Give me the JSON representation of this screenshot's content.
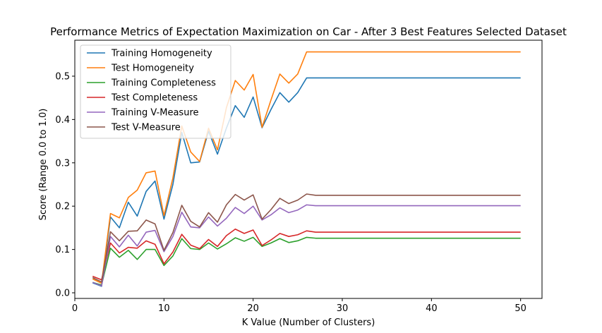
{
  "chart_data": {
    "type": "line",
    "title": "Performance Metrics of Expectation Maximization on Car - After 3 Best Features Selected Dataset",
    "xlabel": "K Value (Number of Clusters)",
    "ylabel": "Score (Range 0.0 to 1.0)",
    "xlim": [
      0,
      52.4
    ],
    "ylim": [
      -0.013,
      0.583
    ],
    "xticks": [
      0,
      10,
      20,
      30,
      40,
      50
    ],
    "yticks": [
      0.0,
      0.1,
      0.2,
      0.3,
      0.4,
      0.5
    ],
    "xtick_labels": [
      "0",
      "10",
      "20",
      "30",
      "40",
      "50"
    ],
    "ytick_labels": [
      "0.0",
      "0.1",
      "0.2",
      "0.3",
      "0.4",
      "0.5"
    ],
    "grid": false,
    "legend_position": "upper-left",
    "x": [
      2,
      3,
      4,
      5,
      6,
      7,
      8,
      9,
      10,
      11,
      12,
      13,
      14,
      15,
      16,
      17,
      18,
      19,
      20,
      21,
      22,
      23,
      24,
      25,
      26,
      27,
      28,
      29,
      30,
      31,
      32,
      33,
      34,
      35,
      36,
      37,
      38,
      39,
      40,
      41,
      42,
      43,
      44,
      45,
      46,
      47,
      48,
      49,
      50
    ],
    "series": [
      {
        "name": "Training Homogeneity",
        "color": "#1f77b4",
        "values": [
          0.023,
          0.015,
          0.175,
          0.15,
          0.209,
          0.177,
          0.234,
          0.258,
          0.17,
          0.25,
          0.37,
          0.3,
          0.302,
          0.373,
          0.32,
          0.38,
          0.432,
          0.405,
          0.452,
          0.381,
          0.423,
          0.462,
          0.44,
          0.462,
          0.496,
          0.496,
          0.496,
          0.496,
          0.496,
          0.496,
          0.496,
          0.496,
          0.496,
          0.496,
          0.496,
          0.496,
          0.496,
          0.496,
          0.496,
          0.496,
          0.496,
          0.496,
          0.496,
          0.496,
          0.496,
          0.496,
          0.496,
          0.496,
          0.496
        ]
      },
      {
        "name": "Test Homogeneity",
        "color": "#ff7f0e",
        "values": [
          0.032,
          0.022,
          0.183,
          0.173,
          0.22,
          0.237,
          0.277,
          0.281,
          0.178,
          0.265,
          0.385,
          0.325,
          0.303,
          0.38,
          0.33,
          0.427,
          0.49,
          0.468,
          0.504,
          0.382,
          0.445,
          0.505,
          0.484,
          0.505,
          0.556,
          0.556,
          0.556,
          0.556,
          0.556,
          0.556,
          0.556,
          0.556,
          0.556,
          0.556,
          0.556,
          0.556,
          0.556,
          0.556,
          0.556,
          0.556,
          0.556,
          0.556,
          0.556,
          0.556,
          0.556,
          0.556,
          0.556,
          0.556,
          0.556
        ]
      },
      {
        "name": "Training Completeness",
        "color": "#2ca02c",
        "values": [
          0.024,
          0.018,
          0.103,
          0.082,
          0.098,
          0.077,
          0.1,
          0.1,
          0.063,
          0.085,
          0.125,
          0.102,
          0.1,
          0.115,
          0.101,
          0.113,
          0.127,
          0.119,
          0.128,
          0.107,
          0.115,
          0.125,
          0.116,
          0.12,
          0.128,
          0.126,
          0.126,
          0.126,
          0.126,
          0.126,
          0.126,
          0.126,
          0.126,
          0.126,
          0.126,
          0.126,
          0.126,
          0.126,
          0.126,
          0.126,
          0.126,
          0.126,
          0.126,
          0.126,
          0.126,
          0.126,
          0.126,
          0.126,
          0.126
        ]
      },
      {
        "name": "Test Completeness",
        "color": "#d62728",
        "values": [
          0.038,
          0.03,
          0.115,
          0.092,
          0.105,
          0.103,
          0.12,
          0.112,
          0.067,
          0.094,
          0.135,
          0.11,
          0.102,
          0.123,
          0.107,
          0.132,
          0.147,
          0.137,
          0.145,
          0.109,
          0.122,
          0.137,
          0.13,
          0.134,
          0.143,
          0.14,
          0.14,
          0.14,
          0.14,
          0.14,
          0.14,
          0.14,
          0.14,
          0.14,
          0.14,
          0.14,
          0.14,
          0.14,
          0.14,
          0.14,
          0.14,
          0.14,
          0.14,
          0.14,
          0.14,
          0.14,
          0.14,
          0.14,
          0.14
        ]
      },
      {
        "name": "Training V-Measure",
        "color": "#9467bd",
        "values": [
          0.024,
          0.016,
          0.13,
          0.106,
          0.133,
          0.108,
          0.14,
          0.144,
          0.095,
          0.13,
          0.186,
          0.152,
          0.15,
          0.175,
          0.154,
          0.172,
          0.197,
          0.183,
          0.2,
          0.168,
          0.18,
          0.196,
          0.185,
          0.191,
          0.203,
          0.201,
          0.201,
          0.201,
          0.201,
          0.201,
          0.201,
          0.201,
          0.201,
          0.201,
          0.201,
          0.201,
          0.201,
          0.201,
          0.201,
          0.201,
          0.201,
          0.201,
          0.201,
          0.201,
          0.201,
          0.201,
          0.201,
          0.201,
          0.201
        ]
      },
      {
        "name": "Test V-Measure",
        "color": "#8c564b",
        "values": [
          0.035,
          0.025,
          0.141,
          0.12,
          0.142,
          0.143,
          0.168,
          0.159,
          0.098,
          0.139,
          0.202,
          0.165,
          0.152,
          0.185,
          0.163,
          0.203,
          0.227,
          0.214,
          0.226,
          0.17,
          0.192,
          0.218,
          0.206,
          0.214,
          0.228,
          0.225,
          0.225,
          0.225,
          0.225,
          0.225,
          0.225,
          0.225,
          0.225,
          0.225,
          0.225,
          0.225,
          0.225,
          0.225,
          0.225,
          0.225,
          0.225,
          0.225,
          0.225,
          0.225,
          0.225,
          0.225,
          0.225,
          0.225,
          0.225
        ]
      }
    ]
  }
}
